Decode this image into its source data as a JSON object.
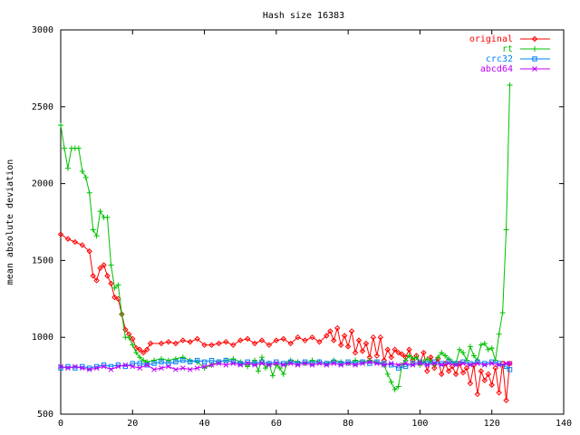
{
  "chart_data": {
    "type": "line",
    "title": "Hash size 16383",
    "xlabel": "",
    "ylabel": "mean absolute deviation",
    "xlim": [
      0,
      140
    ],
    "ylim": [
      500,
      3000
    ],
    "xticks": [
      0,
      20,
      40,
      60,
      80,
      100,
      120,
      140
    ],
    "yticks": [
      500,
      1000,
      1500,
      2000,
      2500,
      3000
    ],
    "grid": false,
    "legend": "top-right",
    "series": [
      {
        "name": "original",
        "color": "#ff0000",
        "marker": "diamond",
        "points": [
          [
            0,
            1670
          ],
          [
            2,
            1640
          ],
          [
            4,
            1620
          ],
          [
            6,
            1600
          ],
          [
            8,
            1560
          ],
          [
            9,
            1400
          ],
          [
            10,
            1370
          ],
          [
            11,
            1450
          ],
          [
            12,
            1470
          ],
          [
            13,
            1400
          ],
          [
            14,
            1350
          ],
          [
            15,
            1260
          ],
          [
            16,
            1250
          ],
          [
            17,
            1150
          ],
          [
            18,
            1050
          ],
          [
            19,
            1020
          ],
          [
            20,
            990
          ],
          [
            21,
            930
          ],
          [
            22,
            920
          ],
          [
            23,
            900
          ],
          [
            24,
            920
          ],
          [
            25,
            960
          ],
          [
            28,
            960
          ],
          [
            30,
            970
          ],
          [
            32,
            960
          ],
          [
            34,
            980
          ],
          [
            36,
            970
          ],
          [
            38,
            990
          ],
          [
            40,
            950
          ],
          [
            42,
            950
          ],
          [
            44,
            960
          ],
          [
            46,
            970
          ],
          [
            48,
            950
          ],
          [
            50,
            980
          ],
          [
            52,
            990
          ],
          [
            54,
            960
          ],
          [
            56,
            980
          ],
          [
            58,
            950
          ],
          [
            60,
            980
          ],
          [
            62,
            990
          ],
          [
            64,
            960
          ],
          [
            66,
            1000
          ],
          [
            68,
            980
          ],
          [
            70,
            1000
          ],
          [
            72,
            970
          ],
          [
            74,
            1010
          ],
          [
            75,
            1040
          ],
          [
            76,
            980
          ],
          [
            77,
            1060
          ],
          [
            78,
            950
          ],
          [
            79,
            1010
          ],
          [
            80,
            940
          ],
          [
            81,
            1040
          ],
          [
            82,
            900
          ],
          [
            83,
            980
          ],
          [
            84,
            910
          ],
          [
            85,
            960
          ],
          [
            86,
            870
          ],
          [
            87,
            1000
          ],
          [
            88,
            880
          ],
          [
            89,
            1000
          ],
          [
            90,
            850
          ],
          [
            91,
            920
          ],
          [
            92,
            870
          ],
          [
            93,
            920
          ],
          [
            94,
            900
          ],
          [
            95,
            890
          ],
          [
            96,
            870
          ],
          [
            97,
            920
          ],
          [
            98,
            850
          ],
          [
            99,
            880
          ],
          [
            100,
            830
          ],
          [
            101,
            900
          ],
          [
            102,
            780
          ],
          [
            103,
            870
          ],
          [
            104,
            800
          ],
          [
            105,
            860
          ],
          [
            106,
            760
          ],
          [
            107,
            830
          ],
          [
            108,
            780
          ],
          [
            109,
            810
          ],
          [
            110,
            760
          ],
          [
            111,
            830
          ],
          [
            112,
            770
          ],
          [
            113,
            800
          ],
          [
            114,
            700
          ],
          [
            115,
            820
          ],
          [
            116,
            630
          ],
          [
            117,
            780
          ],
          [
            118,
            720
          ],
          [
            119,
            760
          ],
          [
            120,
            690
          ],
          [
            121,
            800
          ],
          [
            122,
            640
          ],
          [
            123,
            830
          ],
          [
            124,
            590
          ],
          [
            125,
            830
          ]
        ]
      },
      {
        "name": "rt",
        "color": "#00c000",
        "marker": "plus",
        "points": [
          [
            0,
            2380
          ],
          [
            1,
            2230
          ],
          [
            2,
            2100
          ],
          [
            3,
            2230
          ],
          [
            4,
            2230
          ],
          [
            5,
            2230
          ],
          [
            6,
            2080
          ],
          [
            7,
            2040
          ],
          [
            8,
            1940
          ],
          [
            9,
            1700
          ],
          [
            10,
            1660
          ],
          [
            11,
            1820
          ],
          [
            12,
            1780
          ],
          [
            13,
            1780
          ],
          [
            14,
            1470
          ],
          [
            15,
            1320
          ],
          [
            16,
            1340
          ],
          [
            17,
            1150
          ],
          [
            18,
            1000
          ],
          [
            19,
            1000
          ],
          [
            20,
            950
          ],
          [
            21,
            900
          ],
          [
            22,
            870
          ],
          [
            23,
            850
          ],
          [
            24,
            840
          ],
          [
            26,
            850
          ],
          [
            28,
            860
          ],
          [
            30,
            850
          ],
          [
            32,
            860
          ],
          [
            34,
            870
          ],
          [
            36,
            850
          ],
          [
            38,
            840
          ],
          [
            40,
            800
          ],
          [
            42,
            820
          ],
          [
            44,
            840
          ],
          [
            46,
            850
          ],
          [
            48,
            860
          ],
          [
            50,
            840
          ],
          [
            52,
            810
          ],
          [
            54,
            850
          ],
          [
            55,
            780
          ],
          [
            56,
            870
          ],
          [
            57,
            800
          ],
          [
            58,
            830
          ],
          [
            59,
            750
          ],
          [
            60,
            820
          ],
          [
            61,
            800
          ],
          [
            62,
            760
          ],
          [
            63,
            830
          ],
          [
            64,
            850
          ],
          [
            66,
            840
          ],
          [
            68,
            830
          ],
          [
            70,
            850
          ],
          [
            72,
            840
          ],
          [
            74,
            830
          ],
          [
            76,
            850
          ],
          [
            78,
            840
          ],
          [
            80,
            830
          ],
          [
            82,
            850
          ],
          [
            84,
            840
          ],
          [
            86,
            850
          ],
          [
            88,
            840
          ],
          [
            90,
            820
          ],
          [
            91,
            760
          ],
          [
            92,
            710
          ],
          [
            93,
            660
          ],
          [
            94,
            680
          ],
          [
            95,
            820
          ],
          [
            96,
            850
          ],
          [
            97,
            880
          ],
          [
            98,
            860
          ],
          [
            99,
            870
          ],
          [
            100,
            820
          ],
          [
            101,
            840
          ],
          [
            102,
            860
          ],
          [
            103,
            840
          ],
          [
            104,
            820
          ],
          [
            105,
            870
          ],
          [
            106,
            900
          ],
          [
            107,
            880
          ],
          [
            108,
            860
          ],
          [
            109,
            840
          ],
          [
            110,
            830
          ],
          [
            111,
            920
          ],
          [
            112,
            900
          ],
          [
            113,
            850
          ],
          [
            114,
            940
          ],
          [
            115,
            880
          ],
          [
            116,
            850
          ],
          [
            117,
            950
          ],
          [
            118,
            960
          ],
          [
            119,
            920
          ],
          [
            120,
            930
          ],
          [
            121,
            850
          ],
          [
            122,
            1020
          ],
          [
            123,
            1160
          ],
          [
            124,
            1700
          ],
          [
            125,
            2640
          ]
        ]
      },
      {
        "name": "crc32",
        "color": "#0080ff",
        "marker": "square",
        "points": [
          [
            0,
            800
          ],
          [
            2,
            810
          ],
          [
            4,
            800
          ],
          [
            6,
            810
          ],
          [
            8,
            800
          ],
          [
            10,
            810
          ],
          [
            12,
            820
          ],
          [
            14,
            810
          ],
          [
            16,
            820
          ],
          [
            18,
            810
          ],
          [
            20,
            830
          ],
          [
            22,
            830
          ],
          [
            24,
            820
          ],
          [
            26,
            830
          ],
          [
            28,
            840
          ],
          [
            30,
            830
          ],
          [
            32,
            840
          ],
          [
            34,
            850
          ],
          [
            36,
            840
          ],
          [
            38,
            850
          ],
          [
            40,
            840
          ],
          [
            42,
            850
          ],
          [
            44,
            840
          ],
          [
            46,
            850
          ],
          [
            48,
            840
          ],
          [
            50,
            830
          ],
          [
            52,
            840
          ],
          [
            54,
            830
          ],
          [
            56,
            840
          ],
          [
            58,
            830
          ],
          [
            60,
            840
          ],
          [
            62,
            830
          ],
          [
            64,
            840
          ],
          [
            66,
            830
          ],
          [
            68,
            840
          ],
          [
            70,
            830
          ],
          [
            72,
            840
          ],
          [
            74,
            830
          ],
          [
            76,
            840
          ],
          [
            78,
            830
          ],
          [
            80,
            840
          ],
          [
            82,
            830
          ],
          [
            84,
            840
          ],
          [
            86,
            830
          ],
          [
            88,
            840
          ],
          [
            90,
            830
          ],
          [
            92,
            820
          ],
          [
            94,
            800
          ],
          [
            96,
            810
          ],
          [
            98,
            830
          ],
          [
            100,
            840
          ],
          [
            102,
            830
          ],
          [
            104,
            840
          ],
          [
            106,
            830
          ],
          [
            108,
            840
          ],
          [
            110,
            830
          ],
          [
            112,
            840
          ],
          [
            114,
            830
          ],
          [
            116,
            840
          ],
          [
            118,
            830
          ],
          [
            120,
            840
          ],
          [
            122,
            830
          ],
          [
            124,
            810
          ],
          [
            125,
            790
          ]
        ]
      },
      {
        "name": "abcd64",
        "color": "#c000ff",
        "marker": "cross",
        "points": [
          [
            0,
            810
          ],
          [
            2,
            800
          ],
          [
            4,
            810
          ],
          [
            6,
            800
          ],
          [
            8,
            790
          ],
          [
            10,
            800
          ],
          [
            12,
            810
          ],
          [
            14,
            790
          ],
          [
            16,
            810
          ],
          [
            18,
            820
          ],
          [
            20,
            810
          ],
          [
            22,
            800
          ],
          [
            24,
            820
          ],
          [
            26,
            790
          ],
          [
            28,
            800
          ],
          [
            30,
            810
          ],
          [
            32,
            790
          ],
          [
            34,
            800
          ],
          [
            36,
            790
          ],
          [
            38,
            800
          ],
          [
            40,
            810
          ],
          [
            42,
            820
          ],
          [
            44,
            830
          ],
          [
            46,
            820
          ],
          [
            48,
            830
          ],
          [
            50,
            820
          ],
          [
            52,
            830
          ],
          [
            54,
            820
          ],
          [
            56,
            830
          ],
          [
            58,
            820
          ],
          [
            60,
            830
          ],
          [
            62,
            820
          ],
          [
            64,
            830
          ],
          [
            66,
            820
          ],
          [
            68,
            830
          ],
          [
            70,
            820
          ],
          [
            72,
            830
          ],
          [
            74,
            820
          ],
          [
            76,
            830
          ],
          [
            78,
            820
          ],
          [
            80,
            830
          ],
          [
            82,
            820
          ],
          [
            84,
            830
          ],
          [
            86,
            840
          ],
          [
            88,
            830
          ],
          [
            90,
            820
          ],
          [
            92,
            830
          ],
          [
            94,
            820
          ],
          [
            96,
            830
          ],
          [
            98,
            820
          ],
          [
            100,
            830
          ],
          [
            102,
            820
          ],
          [
            104,
            830
          ],
          [
            106,
            820
          ],
          [
            108,
            830
          ],
          [
            110,
            820
          ],
          [
            112,
            830
          ],
          [
            114,
            820
          ],
          [
            116,
            830
          ],
          [
            118,
            820
          ],
          [
            120,
            830
          ],
          [
            122,
            820
          ],
          [
            124,
            830
          ],
          [
            125,
            830
          ]
        ]
      }
    ]
  }
}
